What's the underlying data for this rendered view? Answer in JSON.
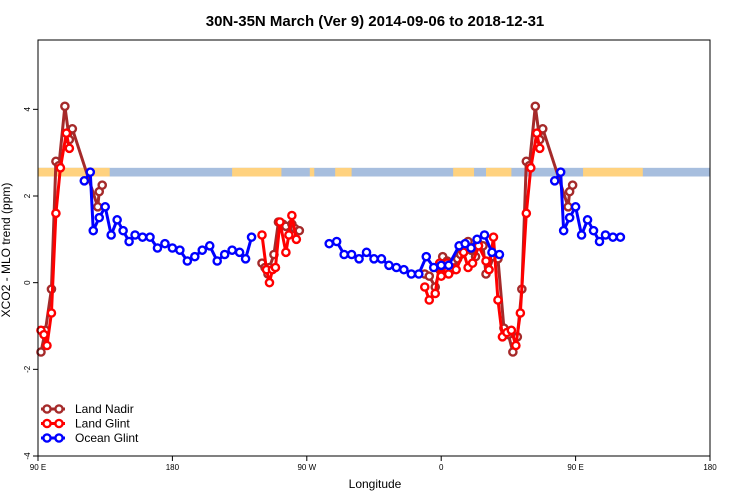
{
  "chart_data": {
    "type": "line",
    "title": "30N-35N March (Ver 9)   2014-09-06 to 2018-12-31",
    "xlabel": "Longitude",
    "ylabel": "XCO2 - MLO trend (ppm)",
    "xlim": [
      90,
      540
    ],
    "ylim": [
      -4,
      5.6
    ],
    "x_ticks": [
      {
        "x": 90,
        "label": "90 E"
      },
      {
        "x": 180,
        "label": "180"
      },
      {
        "x": 270,
        "label": "90 W"
      },
      {
        "x": 360,
        "label": "0"
      },
      {
        "x": 450,
        "label": "90 E"
      },
      {
        "x": 540,
        "label": "180"
      }
    ],
    "y_ticks": [
      {
        "y": -4,
        "label": "-4"
      },
      {
        "y": -2,
        "label": "-2"
      },
      {
        "y": 0,
        "label": "0"
      },
      {
        "y": 2,
        "label": "2"
      },
      {
        "y": 4,
        "label": "4"
      }
    ],
    "grid": false,
    "legend_position": "bottom-left",
    "land_ocean_band": {
      "y_range": [
        2.45,
        2.65
      ],
      "ocean_color": "#a7bede",
      "land_color": "#ffd27f",
      "land_segments": [
        [
          90,
          138
        ],
        [
          220,
          253
        ],
        [
          272,
          275
        ],
        [
          289,
          300
        ],
        [
          368,
          382
        ],
        [
          390,
          407
        ],
        [
          455,
          495
        ]
      ]
    },
    "series": [
      {
        "name": "Land Nadir",
        "color": "#a52a2a",
        "points": [
          [
            92,
            -1.6
          ],
          [
            95,
            -1.1
          ],
          [
            99,
            -0.15
          ],
          [
            102,
            2.8
          ],
          [
            104,
            2.7
          ],
          [
            108,
            4.07
          ],
          [
            111,
            3.3
          ],
          [
            113,
            3.55
          ],
          [
            130,
            1.75
          ],
          [
            131,
            2.1
          ],
          [
            133,
            2.25
          ],
          [
            240,
            0.45
          ],
          [
            242,
            0.35
          ],
          [
            244,
            0.2
          ],
          [
            245,
            0.35
          ],
          [
            248,
            0.65
          ],
          [
            251,
            1.4
          ],
          [
            254,
            1.35
          ],
          [
            256,
            1.3
          ],
          [
            260,
            1.35
          ],
          [
            262,
            1.25
          ],
          [
            265,
            1.2
          ],
          [
            349,
            0.2
          ],
          [
            352,
            0.15
          ],
          [
            356,
            -0.1
          ],
          [
            359,
            0.3
          ],
          [
            361,
            0.6
          ],
          [
            364,
            0.5
          ],
          [
            368,
            0.3
          ],
          [
            371,
            0.55
          ],
          [
            373,
            0.65
          ],
          [
            378,
            0.95
          ],
          [
            380,
            0.75
          ],
          [
            383,
            0.6
          ],
          [
            385,
            0.9
          ],
          [
            388,
            0.85
          ],
          [
            390,
            0.2
          ],
          [
            392,
            0.3
          ],
          [
            395,
            0.6
          ],
          [
            398,
            0.55
          ],
          [
            402,
            -1.05
          ],
          [
            405,
            -1.2
          ],
          [
            408,
            -1.6
          ],
          [
            411,
            -1.25
          ],
          [
            414,
            -0.15
          ],
          [
            417,
            2.8
          ],
          [
            419,
            2.7
          ],
          [
            423,
            4.07
          ],
          [
            426,
            3.3
          ],
          [
            428,
            3.55
          ],
          [
            445,
            1.75
          ],
          [
            446,
            2.1
          ],
          [
            448,
            2.25
          ]
        ]
      },
      {
        "name": "Land Glint",
        "color": "#ff0000",
        "points": [
          [
            92,
            -1.1
          ],
          [
            94,
            -1.2
          ],
          [
            96,
            -1.45
          ],
          [
            99,
            -0.7
          ],
          [
            102,
            1.6
          ],
          [
            105,
            2.65
          ],
          [
            109,
            3.45
          ],
          [
            111,
            3.1
          ],
          [
            240,
            1.1
          ],
          [
            243,
            0.3
          ],
          [
            245,
            0.0
          ],
          [
            247,
            0.3
          ],
          [
            249,
            0.35
          ],
          [
            252,
            1.4
          ],
          [
            256,
            0.7
          ],
          [
            258,
            1.1
          ],
          [
            260,
            1.55
          ],
          [
            263,
            1.0
          ],
          [
            349,
            -0.1
          ],
          [
            352,
            -0.4
          ],
          [
            356,
            -0.25
          ],
          [
            359,
            0.45
          ],
          [
            360,
            0.15
          ],
          [
            364,
            0.45
          ],
          [
            365,
            0.2
          ],
          [
            367,
            0.35
          ],
          [
            370,
            0.3
          ],
          [
            375,
            0.7
          ],
          [
            378,
            0.35
          ],
          [
            381,
            0.45
          ],
          [
            385,
            0.85
          ],
          [
            390,
            0.5
          ],
          [
            392,
            0.3
          ],
          [
            395,
            1.05
          ],
          [
            398,
            -0.4
          ],
          [
            401,
            -1.25
          ],
          [
            404,
            -1.15
          ],
          [
            407,
            -1.1
          ],
          [
            410,
            -1.45
          ],
          [
            413,
            -0.7
          ],
          [
            417,
            1.6
          ],
          [
            420,
            2.65
          ],
          [
            424,
            3.45
          ],
          [
            426,
            3.1
          ]
        ]
      },
      {
        "name": "Ocean Glint",
        "color": "#0000ff",
        "points": [
          [
            121,
            2.35
          ],
          [
            125,
            2.55
          ],
          [
            127,
            1.2
          ],
          [
            131,
            1.5
          ],
          [
            135,
            1.75
          ],
          [
            139,
            1.1
          ],
          [
            143,
            1.45
          ],
          [
            147,
            1.2
          ],
          [
            151,
            0.95
          ],
          [
            155,
            1.1
          ],
          [
            160,
            1.05
          ],
          [
            165,
            1.05
          ],
          [
            170,
            0.8
          ],
          [
            175,
            0.9
          ],
          [
            180,
            0.8
          ],
          [
            185,
            0.75
          ],
          [
            190,
            0.5
          ],
          [
            195,
            0.6
          ],
          [
            200,
            0.75
          ],
          [
            205,
            0.85
          ],
          [
            210,
            0.5
          ],
          [
            215,
            0.65
          ],
          [
            220,
            0.75
          ],
          [
            225,
            0.7
          ],
          [
            229,
            0.55
          ],
          [
            233,
            1.05
          ],
          [
            285,
            0.9
          ],
          [
            290,
            0.95
          ],
          [
            295,
            0.65
          ],
          [
            300,
            0.65
          ],
          [
            305,
            0.55
          ],
          [
            310,
            0.7
          ],
          [
            315,
            0.55
          ],
          [
            320,
            0.55
          ],
          [
            325,
            0.4
          ],
          [
            330,
            0.35
          ],
          [
            335,
            0.3
          ],
          [
            340,
            0.2
          ],
          [
            345,
            0.2
          ],
          [
            350,
            0.6
          ],
          [
            355,
            0.35
          ],
          [
            360,
            0.4
          ],
          [
            365,
            0.4
          ],
          [
            372,
            0.85
          ],
          [
            376,
            0.9
          ],
          [
            380,
            0.8
          ],
          [
            384,
            1.0
          ],
          [
            389,
            1.1
          ],
          [
            394,
            0.7
          ],
          [
            399,
            0.65
          ],
          [
            436,
            2.35
          ],
          [
            440,
            2.55
          ],
          [
            442,
            1.2
          ],
          [
            446,
            1.5
          ],
          [
            450,
            1.75
          ],
          [
            454,
            1.1
          ],
          [
            458,
            1.45
          ],
          [
            462,
            1.2
          ],
          [
            466,
            0.95
          ],
          [
            470,
            1.1
          ],
          [
            475,
            1.05
          ],
          [
            480,
            1.05
          ]
        ]
      }
    ]
  }
}
